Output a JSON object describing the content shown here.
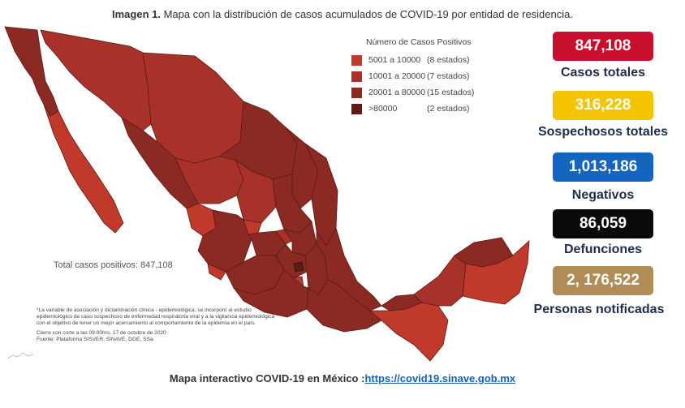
{
  "title": {
    "bold": "Imagen 1.",
    "text": " Mapa con la distribución de casos acumulados de COVID-19 por entidad de residencia."
  },
  "legend": {
    "title": "Número de Casos Positivos",
    "items": [
      {
        "range": "5001 a  10000",
        "count": "(8 estados)",
        "color": "#c0392b"
      },
      {
        "range": "10001 a  20000",
        "count": "(7 estados)",
        "color": "#a8322a"
      },
      {
        "range": "20001 a  80000",
        "count": "(15 estados)",
        "color": "#8b2a23"
      },
      {
        "range": ">80000",
        "count": "(2 estados)",
        "color": "#5e1a16"
      }
    ]
  },
  "map_total": "Total casos positivos: 847,108",
  "notes": [
    "*La variable de asociación y dictaminación clínica - epidemiológica, se incorporó al estudio",
    "epidemiológico de caso sospechoso de enfermedad respiratoria viral y a la vigilancia epidemiológica",
    "con el objetivo de tener un mejor acercamiento al comportamiento de la epidemia en el país.",
    "Cierre con corte a las 09:00hrs, 17 de octubre de 2020",
    "Fuente: Plataforma SISVER, SINAVE, DGE, SSa."
  ],
  "stats": [
    {
      "value": "847,108",
      "label": "Casos totales",
      "color": "#c8102e",
      "text_color": "#ffffff"
    },
    {
      "value": "316,228",
      "label": "Sospechosos totales",
      "color": "#f5c400",
      "text_color": "#ffffff"
    },
    {
      "value": "1,013,186",
      "label": "Negativos",
      "color": "#1565c0",
      "text_color": "#ffffff"
    },
    {
      "value": "86,059",
      "label": "Defunciones",
      "color": "#0a0a0a",
      "text_color": "#ffffff"
    },
    {
      "value": "2, 176,522",
      "label": "Personas notificadas",
      "color": "#b08d57",
      "text_color": "#ffffff"
    }
  ],
  "footer": {
    "text": "Mapa interactivo COVID-19 en México :",
    "link": "https://covid19.sinave.gob.mx"
  }
}
